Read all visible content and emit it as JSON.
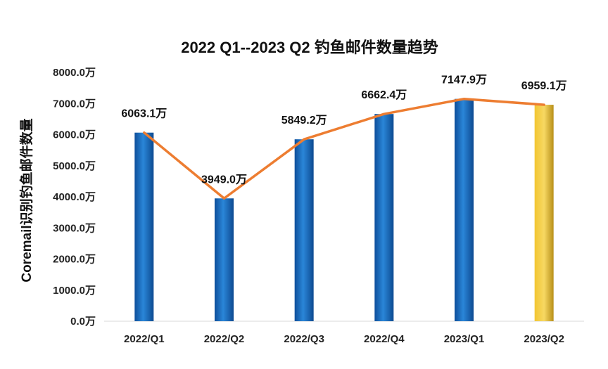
{
  "chart_data": {
    "type": "bar",
    "title": "2022 Q1--2023 Q2 钓鱼邮件数量趋势",
    "ylabel": "Coremail识别钓鱼邮件数量",
    "xlabel": "",
    "categories": [
      "2022/Q1",
      "2022/Q2",
      "2022/Q3",
      "2022/Q4",
      "2023/Q1",
      "2023/Q2"
    ],
    "values": [
      6063.1,
      3949.0,
      5849.2,
      6662.4,
      7147.9,
      6959.1
    ],
    "data_labels": [
      "6063.1万",
      "3949.0万",
      "5849.2万",
      "6662.4万",
      "7147.9万",
      "6959.1万"
    ],
    "yticks": [
      "0.0万",
      "1000.0万",
      "2000.0万",
      "3000.0万",
      "4000.0万",
      "5000.0万",
      "6000.0万",
      "7000.0万",
      "8000.0万"
    ],
    "ylim": [
      0,
      8000
    ],
    "line_overlay": true,
    "grid": false,
    "colors": {
      "bar": "#1f6fc2",
      "bar_highlight": "#e8b71e",
      "line": "#ed7d31"
    }
  }
}
